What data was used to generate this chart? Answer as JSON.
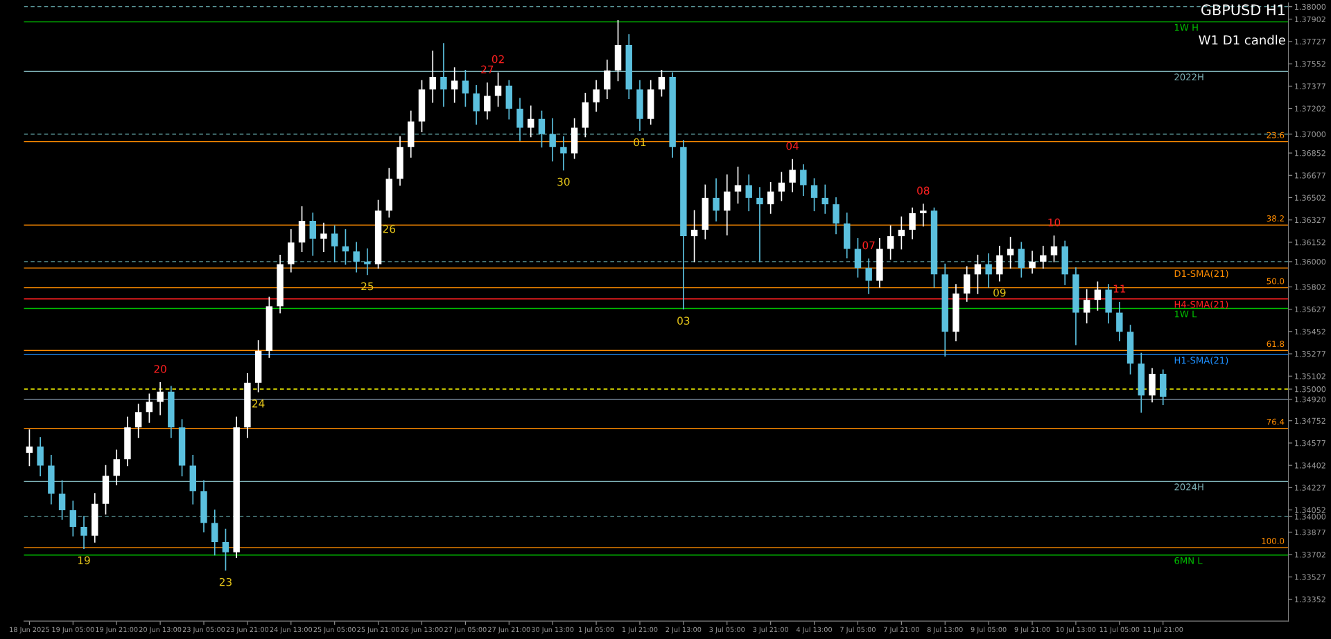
{
  "chart_data": {
    "type": "candlestick",
    "title": "GBPUSD H1",
    "subtitle": "W1 D1 candle",
    "categories": [
      "18 Jun 2025",
      null,
      null,
      null,
      "19 Jun 05:00",
      null,
      null,
      null,
      "19 Jun 21:00",
      null,
      null,
      null,
      "20 Jun 13:00",
      null,
      null,
      null,
      "23 Jun 05:00",
      null,
      null,
      null,
      "23 Jun 21:00",
      null,
      null,
      null,
      "24 Jun 13:00",
      null,
      null,
      null,
      "25 Jun 05:00",
      null,
      null,
      null,
      "25 Jun 21:00",
      null,
      null,
      null,
      "26 Jun 13:00",
      null,
      null,
      null,
      "27 Jun 05:00",
      null,
      null,
      null,
      "27 Jun 21:00",
      null,
      null,
      null,
      "30 Jun 13:00",
      null,
      null,
      null,
      "1 Jul 05:00",
      null,
      null,
      null,
      "1 Jul 21:00",
      null,
      null,
      null,
      "2 Jul 13:00",
      null,
      null,
      null,
      "3 Jul 05:00",
      null,
      null,
      null,
      "3 Jul 21:00",
      null,
      null,
      null,
      "4 Jul 13:00",
      null,
      null,
      null,
      "7 Jul 05:00",
      null,
      null,
      null,
      "7 Jul 21:00",
      null,
      null,
      null,
      "8 Jul 13:00",
      null,
      null,
      null,
      "9 Jul 05:00",
      null,
      null,
      null,
      "9 Jul 21:00",
      null,
      null,
      null,
      "10 Jul 13:00",
      null,
      null,
      null,
      "11 Jul 05:00",
      null,
      null,
      null,
      "11 Jul 21:00",
      null,
      null,
      null,
      null,
      null,
      null,
      null,
      null,
      null,
      null,
      null
    ],
    "ohlc": [
      [
        1.345,
        1.3468,
        1.344,
        1.3455
      ],
      [
        1.3455,
        1.3462,
        1.3432,
        1.344
      ],
      [
        1.344,
        1.3448,
        1.341,
        1.3418
      ],
      [
        1.3418,
        1.3428,
        1.3398,
        1.3405
      ],
      [
        1.3405,
        1.3412,
        1.3385,
        1.3392
      ],
      [
        1.3392,
        1.34,
        1.3375,
        1.3385
      ],
      [
        1.3385,
        1.3418,
        1.338,
        1.341
      ],
      [
        1.341,
        1.344,
        1.3402,
        1.3432
      ],
      [
        1.3432,
        1.3452,
        1.3425,
        1.3445
      ],
      [
        1.3445,
        1.3478,
        1.344,
        1.347
      ],
      [
        1.347,
        1.3488,
        1.3462,
        1.3482
      ],
      [
        1.3482,
        1.3496,
        1.3474,
        1.349
      ],
      [
        1.349,
        1.3505,
        1.348,
        1.3498
      ],
      [
        1.3498,
        1.3502,
        1.3462,
        1.347
      ],
      [
        1.347,
        1.3476,
        1.3432,
        1.344
      ],
      [
        1.344,
        1.3448,
        1.341,
        1.342
      ],
      [
        1.342,
        1.3428,
        1.3388,
        1.3395
      ],
      [
        1.3395,
        1.3405,
        1.337,
        1.338
      ],
      [
        1.338,
        1.339,
        1.3358,
        1.3372
      ],
      [
        1.3372,
        1.3478,
        1.3368,
        1.347
      ],
      [
        1.347,
        1.3512,
        1.3462,
        1.3505
      ],
      [
        1.3505,
        1.3538,
        1.3498,
        1.353
      ],
      [
        1.353,
        1.3572,
        1.3525,
        1.3565
      ],
      [
        1.3565,
        1.3605,
        1.356,
        1.3598
      ],
      [
        1.3598,
        1.3625,
        1.3592,
        1.3615
      ],
      [
        1.3615,
        1.3643,
        1.3608,
        1.3632
      ],
      [
        1.3632,
        1.3638,
        1.3605,
        1.3618
      ],
      [
        1.3618,
        1.363,
        1.3608,
        1.3622
      ],
      [
        1.3622,
        1.3628,
        1.36,
        1.3612
      ],
      [
        1.3612,
        1.3625,
        1.3598,
        1.3608
      ],
      [
        1.3608,
        1.3615,
        1.3592,
        1.36
      ],
      [
        1.36,
        1.361,
        1.359,
        1.3598
      ],
      [
        1.3598,
        1.3648,
        1.3595,
        1.364
      ],
      [
        1.364,
        1.3673,
        1.3635,
        1.3665
      ],
      [
        1.3665,
        1.3698,
        1.366,
        1.369
      ],
      [
        1.369,
        1.3718,
        1.3682,
        1.371
      ],
      [
        1.371,
        1.3742,
        1.3702,
        1.3735
      ],
      [
        1.3735,
        1.3765,
        1.3725,
        1.3745
      ],
      [
        1.3745,
        1.3771,
        1.3722,
        1.3735
      ],
      [
        1.3735,
        1.3752,
        1.3725,
        1.3742
      ],
      [
        1.3742,
        1.375,
        1.3722,
        1.3732
      ],
      [
        1.3732,
        1.3738,
        1.3708,
        1.3718
      ],
      [
        1.3718,
        1.374,
        1.3712,
        1.373
      ],
      [
        1.373,
        1.3748,
        1.3722,
        1.3738
      ],
      [
        1.3738,
        1.3742,
        1.3712,
        1.372
      ],
      [
        1.372,
        1.3728,
        1.3695,
        1.3705
      ],
      [
        1.3705,
        1.3722,
        1.3698,
        1.3712
      ],
      [
        1.3712,
        1.3718,
        1.369,
        1.37
      ],
      [
        1.37,
        1.3712,
        1.3679,
        1.369
      ],
      [
        1.369,
        1.3698,
        1.3672,
        1.3685
      ],
      [
        1.3685,
        1.3712,
        1.3681,
        1.3705
      ],
      [
        1.3705,
        1.3732,
        1.3698,
        1.3725
      ],
      [
        1.3725,
        1.3742,
        1.3718,
        1.3735
      ],
      [
        1.3735,
        1.3758,
        1.3728,
        1.375
      ],
      [
        1.375,
        1.3789,
        1.3742,
        1.377
      ],
      [
        1.377,
        1.3778,
        1.3728,
        1.3735
      ],
      [
        1.3735,
        1.3742,
        1.3703,
        1.3712
      ],
      [
        1.3712,
        1.3742,
        1.3708,
        1.3735
      ],
      [
        1.3735,
        1.375,
        1.373,
        1.3745
      ],
      [
        1.3745,
        1.3748,
        1.3682,
        1.369
      ],
      [
        1.369,
        1.3695,
        1.3563,
        1.362
      ],
      [
        1.362,
        1.364,
        1.36,
        1.3625
      ],
      [
        1.3625,
        1.366,
        1.3618,
        1.365
      ],
      [
        1.365,
        1.3665,
        1.3632,
        1.364
      ],
      [
        1.364,
        1.3668,
        1.3621,
        1.3655
      ],
      [
        1.3655,
        1.3674,
        1.3646,
        1.366
      ],
      [
        1.366,
        1.3668,
        1.364,
        1.365
      ],
      [
        1.365,
        1.3658,
        1.36,
        1.3645
      ],
      [
        1.3645,
        1.3662,
        1.3638,
        1.3655
      ],
      [
        1.3655,
        1.367,
        1.3648,
        1.3662
      ],
      [
        1.3662,
        1.368,
        1.3655,
        1.3672
      ],
      [
        1.3672,
        1.3676,
        1.3652,
        1.366
      ],
      [
        1.366,
        1.3665,
        1.364,
        1.365
      ],
      [
        1.365,
        1.366,
        1.3638,
        1.3645
      ],
      [
        1.3645,
        1.365,
        1.3622,
        1.363
      ],
      [
        1.363,
        1.3638,
        1.3603,
        1.361
      ],
      [
        1.361,
        1.3618,
        1.3588,
        1.3595
      ],
      [
        1.3595,
        1.3602,
        1.3575,
        1.3585
      ],
      [
        1.3585,
        1.3618,
        1.358,
        1.361
      ],
      [
        1.361,
        1.3628,
        1.3602,
        1.362
      ],
      [
        1.362,
        1.3635,
        1.361,
        1.3625
      ],
      [
        1.3625,
        1.3642,
        1.3618,
        1.3638
      ],
      [
        1.3638,
        1.3645,
        1.3628,
        1.364
      ],
      [
        1.364,
        1.3642,
        1.358,
        1.359
      ],
      [
        1.359,
        1.3598,
        1.3526,
        1.3545
      ],
      [
        1.3545,
        1.3582,
        1.3538,
        1.3575
      ],
      [
        1.3575,
        1.3596,
        1.3569,
        1.359
      ],
      [
        1.359,
        1.3605,
        1.3575,
        1.3598
      ],
      [
        1.3598,
        1.3606,
        1.358,
        1.359
      ],
      [
        1.359,
        1.3612,
        1.3585,
        1.3605
      ],
      [
        1.3605,
        1.3619,
        1.3595,
        1.361
      ],
      [
        1.361,
        1.3615,
        1.3588,
        1.3595
      ],
      [
        1.3595,
        1.3608,
        1.3591,
        1.36
      ],
      [
        1.36,
        1.3612,
        1.3595,
        1.3605
      ],
      [
        1.3605,
        1.362,
        1.36,
        1.3612
      ],
      [
        1.3612,
        1.3616,
        1.3582,
        1.359
      ],
      [
        1.359,
        1.3595,
        1.3535,
        1.356
      ],
      [
        1.356,
        1.3578,
        1.3552,
        1.357
      ],
      [
        1.357,
        1.3584,
        1.3562,
        1.3578
      ],
      [
        1.3578,
        1.3582,
        1.3552,
        1.356
      ],
      [
        1.356,
        1.3568,
        1.3538,
        1.3545
      ],
      [
        1.3545,
        1.355,
        1.3512,
        1.352
      ],
      [
        1.352,
        1.3528,
        1.3482,
        1.3495
      ],
      [
        1.3495,
        1.3516,
        1.349,
        1.3512
      ],
      [
        1.3512,
        1.3515,
        1.3488,
        1.3494
      ],
      null,
      null,
      null,
      null,
      null,
      null,
      null,
      null,
      null,
      null,
      null
    ],
    "colors": [
      "#ffffff",
      "#5bc0de",
      "#5bc0de",
      "#5bc0de",
      "#5bc0de",
      "#5bc0de",
      "#ffffff",
      "#ffffff",
      "#ffffff",
      "#ffffff",
      "#ffffff",
      "#ffffff",
      "#ffffff",
      "#5bc0de",
      "#5bc0de",
      "#5bc0de",
      "#5bc0de",
      "#5bc0de",
      "#5bc0de",
      "#ffffff",
      "#ffffff",
      "#ffffff",
      "#ffffff",
      "#ffffff",
      "#ffffff",
      "#ffffff",
      "#5bc0de",
      "#ffffff",
      "#5bc0de",
      "#5bc0de",
      "#5bc0de",
      "#5bc0de",
      "#ffffff",
      "#ffffff",
      "#ffffff",
      "#ffffff",
      "#ffffff",
      "#ffffff",
      "#5bc0de",
      "#ffffff",
      "#5bc0de",
      "#5bc0de",
      "#ffffff",
      "#ffffff",
      "#5bc0de",
      "#5bc0de",
      "#ffffff",
      "#5bc0de",
      "#5bc0de",
      "#5bc0de",
      "#ffffff",
      "#ffffff",
      "#ffffff",
      "#ffffff",
      "#ffffff",
      "#5bc0de",
      "#5bc0de",
      "#ffffff",
      "#ffffff",
      "#5bc0de",
      "#5bc0de",
      "#ffffff",
      "#ffffff",
      "#5bc0de",
      "#ffffff",
      "#ffffff",
      "#5bc0de",
      "#5bc0de",
      "#ffffff",
      "#ffffff",
      "#ffffff",
      "#5bc0de",
      "#5bc0de",
      "#5bc0de",
      "#5bc0de",
      "#5bc0de",
      "#5bc0de",
      "#5bc0de",
      "#ffffff",
      "#ffffff",
      "#ffffff",
      "#ffffff",
      "#ffffff",
      "#5bc0de",
      "#5bc0de",
      "#ffffff",
      "#ffffff",
      "#ffffff",
      "#5bc0de",
      "#ffffff",
      "#ffffff",
      "#5bc0de",
      "#ffffff",
      "#ffffff",
      "#ffffff",
      "#5bc0de",
      "#5bc0de",
      "#ffffff",
      "#ffffff",
      "#5bc0de",
      "#5bc0de",
      "#5bc0de",
      "#5bc0de",
      "#ffffff",
      "#5bc0de",
      null,
      null,
      null,
      null,
      null,
      null,
      null,
      null,
      null,
      null,
      null
    ],
    "ylim": [
      1.3318,
      1.3803
    ],
    "yticks": [
      {
        "value": 1.38,
        "label": "1.38000"
      },
      1.37902,
      1.37727,
      1.37552,
      1.37377,
      1.37202,
      {
        "value": 1.37,
        "label": "1.37000"
      },
      1.36852,
      1.36677,
      1.36502,
      1.36327,
      1.36152,
      {
        "value": 1.36,
        "label": "1.36000"
      },
      1.35802,
      1.35627,
      1.35452,
      1.35277,
      1.35102,
      {
        "value": 1.35,
        "label": "1.35000"
      },
      {
        "value": 1.3492,
        "label": "1.34920"
      },
      1.34752,
      1.34577,
      1.34402,
      1.34227,
      1.34052,
      {
        "value": 1.34,
        "label": "1.34000"
      },
      1.33877,
      1.33702,
      1.33527,
      1.33352
    ],
    "ref_lines": [
      {
        "axis": "y",
        "value": 1.38,
        "color": "#5f9ea0",
        "line_style": "dashed"
      },
      {
        "axis": "y",
        "value": 1.37881,
        "color": "#00c000",
        "label": "1W H"
      },
      {
        "axis": "y",
        "value": 1.37492,
        "color": "#7fb3b8",
        "label": "2022H"
      },
      {
        "axis": "y",
        "value": 1.37,
        "color": "#5f9ea0",
        "line_style": "dashed"
      },
      {
        "axis": "y",
        "value": 1.36941,
        "color": "#ff8c00"
      },
      {
        "axis": "y",
        "value": 1.36287,
        "color": "#ff8c00"
      },
      {
        "axis": "y",
        "value": 1.36,
        "color": "#5f9ea0",
        "line_style": "dashed"
      },
      {
        "axis": "y",
        "value": 1.3595,
        "color": "#ff8c00",
        "label": "D1-SMA(21)"
      },
      {
        "axis": "y",
        "value": 1.35795,
        "color": "#ff8c00"
      },
      {
        "axis": "y",
        "value": 1.35708,
        "color": "#ff2020",
        "label": "H4-SMA(21)"
      },
      {
        "axis": "y",
        "value": 1.35633,
        "color": "#00c000",
        "label": "1W L"
      },
      {
        "axis": "y",
        "value": 1.35303,
        "color": "#ff8c00"
      },
      {
        "axis": "y",
        "value": 1.3527,
        "color": "#1e90ff",
        "label": "H1-SMA(21)"
      },
      {
        "axis": "y",
        "value": 1.35,
        "color": "#ffff00",
        "line_style": "dashed"
      },
      {
        "axis": "y",
        "value": 1.3492,
        "color": "#778899"
      },
      {
        "axis": "y",
        "value": 1.34692,
        "color": "#ff8c00"
      },
      {
        "axis": "y",
        "value": 1.34276,
        "color": "#7fb3b8",
        "label": "2024H"
      },
      {
        "axis": "y",
        "value": 1.34,
        "color": "#5f9ea0",
        "line_style": "dashed"
      },
      {
        "axis": "y",
        "value": 1.33757,
        "color": "#ff8c00"
      },
      {
        "axis": "y",
        "value": 1.33698,
        "color": "#00c000",
        "label": "6MN L"
      }
    ],
    "annotations": [
      {
        "text": "23.6",
        "y": 1.36941
      },
      {
        "text": "38.2",
        "y": 1.36287
      },
      {
        "text": "50.0",
        "y": 1.35795
      },
      {
        "text": "61.8",
        "y": 1.35303
      },
      {
        "text": "76.4",
        "y": 1.34692
      },
      {
        "text": "100.0",
        "y": 1.33757
      },
      {
        "text": "19",
        "y": 1.3375
      },
      {
        "text": "20",
        "y": 1.3505
      },
      {
        "text": "23",
        "y": 1.3358
      },
      {
        "text": "24",
        "y": 1.3498
      },
      {
        "text": "25",
        "y": 1.359
      },
      {
        "text": "26",
        "y": 1.3635
      },
      {
        "text": "27",
        "y": 1.374
      },
      {
        "text": "30",
        "y": 1.3672
      },
      {
        "text": "01",
        "y": 1.3703
      },
      {
        "text": "02",
        "y": 1.3748
      },
      {
        "text": "03",
        "y": 1.3563
      },
      {
        "text": "04",
        "y": 1.368
      },
      {
        "text": "07",
        "y": 1.3602
      },
      {
        "text": "08",
        "y": 1.3645
      },
      {
        "text": "09",
        "y": 1.3585
      },
      {
        "text": "10",
        "y": 1.362
      },
      {
        "text": "11",
        "y": 1.3568
      }
    ]
  }
}
